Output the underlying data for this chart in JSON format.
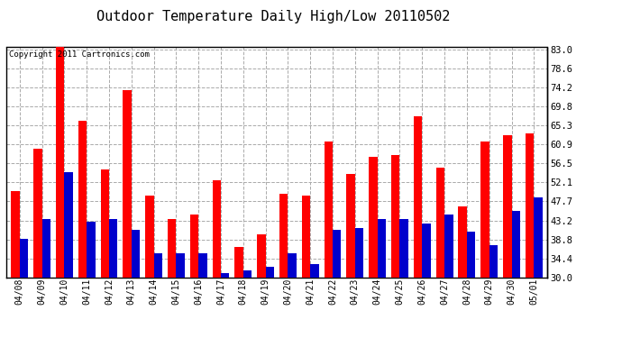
{
  "title": "Outdoor Temperature Daily High/Low 20110502",
  "copyright": "Copyright 2011 Cartronics.com",
  "dates": [
    "04/08",
    "04/09",
    "04/10",
    "04/11",
    "04/12",
    "04/13",
    "04/14",
    "04/15",
    "04/16",
    "04/17",
    "04/18",
    "04/19",
    "04/20",
    "04/21",
    "04/22",
    "04/23",
    "04/24",
    "04/25",
    "04/26",
    "04/27",
    "04/28",
    "04/29",
    "04/30",
    "05/01"
  ],
  "highs": [
    50.0,
    60.0,
    83.5,
    66.5,
    55.0,
    73.5,
    49.0,
    43.5,
    44.5,
    52.5,
    37.0,
    40.0,
    49.5,
    49.0,
    61.5,
    54.0,
    58.0,
    58.5,
    67.5,
    55.5,
    46.5,
    61.5,
    63.0,
    63.5
  ],
  "lows": [
    39.0,
    43.5,
    54.5,
    43.0,
    43.5,
    41.0,
    35.5,
    35.5,
    35.5,
    31.0,
    31.5,
    32.5,
    35.5,
    33.0,
    41.0,
    41.5,
    43.5,
    43.5,
    42.5,
    44.5,
    40.5,
    37.5,
    45.5,
    48.5
  ],
  "high_color": "#ff0000",
  "low_color": "#0000cc",
  "yticks": [
    30.0,
    34.4,
    38.8,
    43.2,
    47.7,
    52.1,
    56.5,
    60.9,
    65.3,
    69.8,
    74.2,
    78.6,
    83.0
  ],
  "ymin": 30.0,
  "ymax": 83.0,
  "bg_color": "#ffffff",
  "grid_color": "#aaaaaa",
  "bar_width": 0.38,
  "title_fontsize": 11,
  "copyright_fontsize": 6.5,
  "tick_fontsize": 7,
  "ylabel_right_fontsize": 7.5
}
